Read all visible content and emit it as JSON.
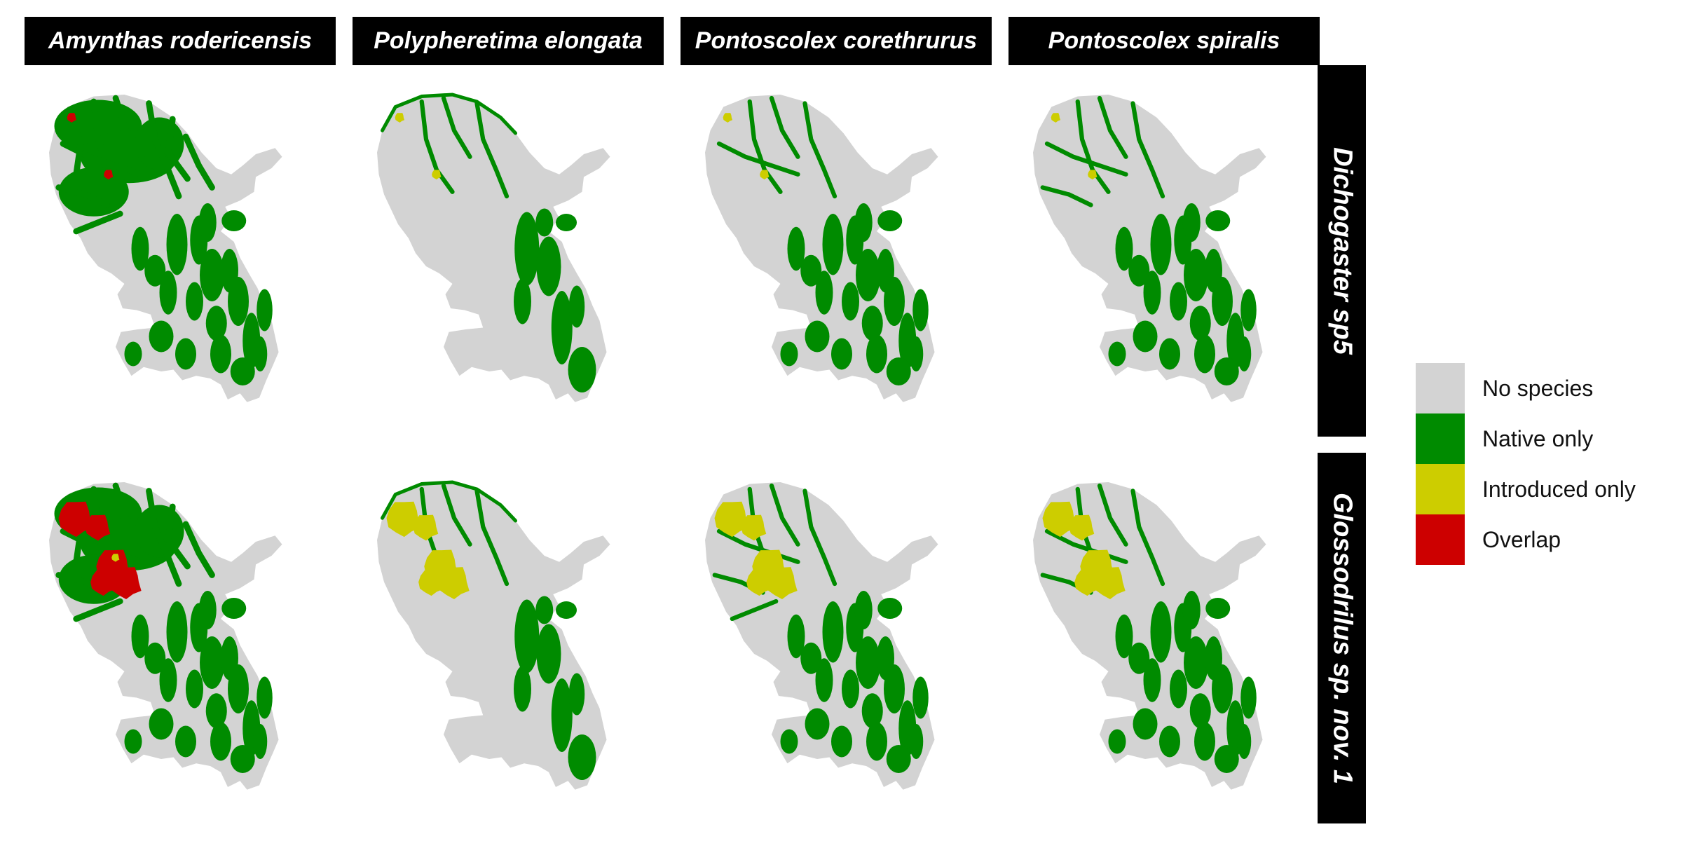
{
  "column_labels": [
    "Amynthas rodericensis",
    "Polypheretima elongata",
    "Pontoscolex corethrurus",
    "Pontoscolex spiralis"
  ],
  "row_labels": [
    "Dichogaster sp5",
    "Glossodrilus sp. nov. 1"
  ],
  "legend": {
    "items": [
      {
        "label": "No species",
        "color": "#d3d3d3"
      },
      {
        "label": "Native only",
        "color": "#008b00"
      },
      {
        "label": "Introduced only",
        "color": "#cdcd00"
      },
      {
        "label": "Overlap",
        "color": "#cd0000"
      }
    ]
  },
  "colors": {
    "background": "#ffffff",
    "strip": "#000000",
    "strip_text": "#ffffff",
    "no_species": "#d3d3d3",
    "native_only": "#008b00",
    "introduced_only": "#cdcd00",
    "overlap": "#cd0000"
  }
}
